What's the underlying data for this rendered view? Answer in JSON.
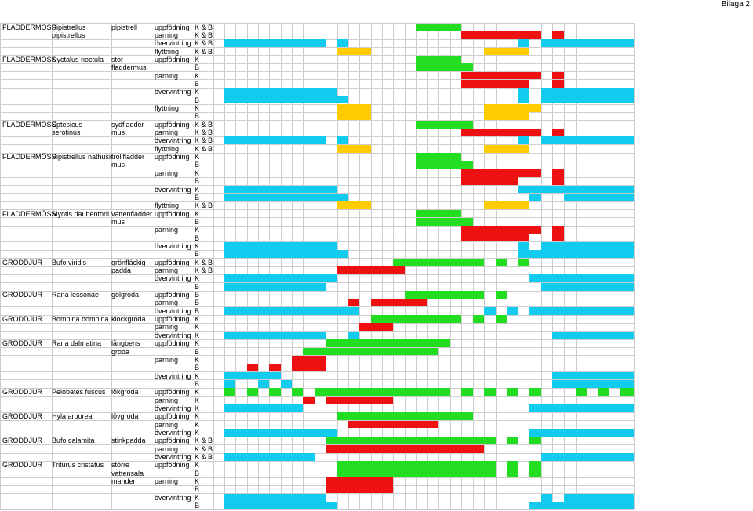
{
  "page_tag": "Bilaga 2",
  "colors": {
    "uppfodning": "#22dd22",
    "parning": "#ee1111",
    "overvintring": "#11ccee",
    "flyttning": "#ffcc00",
    "gridline": "#cccccc"
  },
  "rows": [
    {
      "group": "FLADDERMÖSS",
      "latin": "Pipistrellus",
      "swedish": "pipistrell",
      "activity": "uppfödning",
      "code": "K & B",
      "color": "uppfodning",
      "segs": [
        [
          530,
          588
        ]
      ]
    },
    {
      "group": "",
      "latin": "pipistrellus",
      "swedish": "",
      "activity": "parning",
      "code": "K & B",
      "color": "parning",
      "segs": [
        [
          588,
          690
        ],
        [
          704,
          719
        ]
      ]
    },
    {
      "group": "",
      "latin": "",
      "swedish": "",
      "activity": "övervintring",
      "code": "K & B",
      "color": "overvintring",
      "segs": [
        [
          286,
          415
        ],
        [
          430,
          444
        ],
        [
          660,
          674
        ],
        [
          690,
          808
        ]
      ]
    },
    {
      "group": "",
      "latin": "",
      "swedish": "",
      "activity": "flyttning",
      "code": "K & B",
      "color": "flyttning",
      "segs": [
        [
          430,
          473
        ],
        [
          617,
          674
        ]
      ]
    },
    {
      "group": "FLADDERMÖSS",
      "latin": "Nyctalus noctula",
      "swedish": "stor",
      "activity": "uppfödning",
      "code": "K",
      "color": "uppfodning",
      "segs": [
        [
          530,
          588
        ]
      ]
    },
    {
      "group": "",
      "latin": "",
      "swedish": "fladdermus",
      "activity": "",
      "code": "B",
      "color": "uppfodning",
      "segs": [
        [
          530,
          603
        ]
      ]
    },
    {
      "group": "",
      "latin": "",
      "swedish": "",
      "activity": "parning",
      "code": "K",
      "color": "parning",
      "segs": [
        [
          588,
          690
        ],
        [
          704,
          719
        ]
      ]
    },
    {
      "group": "",
      "latin": "",
      "swedish": "",
      "activity": "",
      "code": "B",
      "color": "parning",
      "segs": [
        [
          588,
          674
        ],
        [
          704,
          719
        ]
      ]
    },
    {
      "group": "",
      "latin": "",
      "swedish": "",
      "activity": "övervintring",
      "code": "K",
      "color": "overvintring",
      "segs": [
        [
          286,
          430
        ],
        [
          660,
          674
        ],
        [
          690,
          808
        ]
      ]
    },
    {
      "group": "",
      "latin": "",
      "swedish": "",
      "activity": "",
      "code": "B",
      "color": "overvintring",
      "segs": [
        [
          286,
          444
        ],
        [
          660,
          674
        ],
        [
          690,
          808
        ]
      ]
    },
    {
      "group": "",
      "latin": "",
      "swedish": "",
      "activity": "flyttning",
      "code": "K",
      "color": "flyttning",
      "segs": [
        [
          430,
          473
        ],
        [
          617,
          690
        ]
      ]
    },
    {
      "group": "",
      "latin": "",
      "swedish": "",
      "activity": "",
      "code": "B",
      "color": "flyttning",
      "segs": [
        [
          430,
          473
        ],
        [
          617,
          674
        ]
      ]
    },
    {
      "group": "FLADDERMÖSS",
      "latin": "Eptesicus",
      "swedish": "sydfladder",
      "activity": "uppfödning",
      "code": "K & B",
      "color": "uppfodning",
      "segs": [
        [
          530,
          603
        ]
      ]
    },
    {
      "group": "",
      "latin": "serotinus",
      "swedish": "mus",
      "activity": "parning",
      "code": "K & B",
      "color": "parning",
      "segs": [
        [
          588,
          690
        ],
        [
          704,
          719
        ]
      ]
    },
    {
      "group": "",
      "latin": "",
      "swedish": "",
      "activity": "övervintring",
      "code": "K & B",
      "color": "overvintring",
      "segs": [
        [
          286,
          415
        ],
        [
          430,
          444
        ],
        [
          660,
          674
        ],
        [
          690,
          808
        ]
      ]
    },
    {
      "group": "",
      "latin": "",
      "swedish": "",
      "activity": "flyttning",
      "code": "K & B",
      "color": "flyttning",
      "segs": [
        [
          430,
          473
        ],
        [
          617,
          674
        ]
      ]
    },
    {
      "group": "FLADDERMÖSS",
      "latin": "Pipistrellus nathusii",
      "swedish": "trollfladder",
      "activity": "uppfödning",
      "code": "K",
      "color": "uppfodning",
      "segs": [
        [
          530,
          588
        ]
      ]
    },
    {
      "group": "",
      "latin": "",
      "swedish": "mus",
      "activity": "",
      "code": "B",
      "color": "uppfodning",
      "segs": [
        [
          530,
          603
        ]
      ]
    },
    {
      "group": "",
      "latin": "",
      "swedish": "",
      "activity": "parning",
      "code": "K",
      "color": "parning",
      "segs": [
        [
          588,
          690
        ],
        [
          704,
          719
        ]
      ]
    },
    {
      "group": "",
      "latin": "",
      "swedish": "",
      "activity": "",
      "code": "B",
      "color": "parning",
      "segs": [
        [
          588,
          660
        ],
        [
          704,
          719
        ]
      ]
    },
    {
      "group": "",
      "latin": "",
      "swedish": "",
      "activity": "övervintring",
      "code": "K",
      "color": "overvintring",
      "segs": [
        [
          286,
          430
        ],
        [
          660,
          808
        ]
      ]
    },
    {
      "group": "",
      "latin": "",
      "swedish": "",
      "activity": "",
      "code": "B",
      "color": "overvintring",
      "segs": [
        [
          286,
          444
        ],
        [
          674,
          690
        ],
        [
          719,
          808
        ]
      ]
    },
    {
      "group": "",
      "latin": "",
      "swedish": "",
      "activity": "flyttning",
      "code": "K & B",
      "color": "flyttning",
      "segs": [
        [
          430,
          473
        ],
        [
          617,
          674
        ]
      ]
    },
    {
      "group": "FLADDERMÖSS",
      "latin": "Myotis daubentoni",
      "swedish": "vattenfladder",
      "activity": "uppfödning",
      "code": "K",
      "color": "uppfodning",
      "segs": [
        [
          530,
          588
        ]
      ]
    },
    {
      "group": "",
      "latin": "",
      "swedish": "mus",
      "activity": "",
      "code": "B",
      "color": "uppfodning",
      "segs": [
        [
          530,
          603
        ]
      ]
    },
    {
      "group": "",
      "latin": "",
      "swedish": "",
      "activity": "parning",
      "code": "K",
      "color": "parning",
      "segs": [
        [
          588,
          690
        ],
        [
          704,
          719
        ]
      ]
    },
    {
      "group": "",
      "latin": "",
      "swedish": "",
      "activity": "",
      "code": "B",
      "color": "parning",
      "segs": [
        [
          588,
          674
        ],
        [
          704,
          719
        ]
      ]
    },
    {
      "group": "",
      "latin": "",
      "swedish": "",
      "activity": "övervintring",
      "code": "K",
      "color": "overvintring",
      "segs": [
        [
          286,
          430
        ],
        [
          660,
          674
        ],
        [
          690,
          808
        ]
      ]
    },
    {
      "group": "",
      "latin": "",
      "swedish": "",
      "activity": "",
      "code": "B",
      "color": "overvintring",
      "segs": [
        [
          286,
          444
        ],
        [
          660,
          808
        ]
      ]
    },
    {
      "group": "GRODDJUR",
      "latin": "Bufo viridis",
      "swedish": "grönfläckig",
      "activity": "uppfödning",
      "code": "K & B",
      "color": "uppfodning",
      "segs": [
        [
          501,
          617
        ],
        [
          632,
          646
        ],
        [
          660,
          674
        ]
      ]
    },
    {
      "group": "",
      "latin": "",
      "swedish": "padda",
      "activity": "parning",
      "code": "K & B",
      "color": "parning",
      "segs": [
        [
          430,
          516
        ]
      ]
    },
    {
      "group": "",
      "latin": "",
      "swedish": "",
      "activity": "övervintring",
      "code": "K",
      "color": "overvintring",
      "segs": [
        [
          286,
          430
        ],
        [
          674,
          808
        ]
      ]
    },
    {
      "group": "",
      "latin": "",
      "swedish": "",
      "activity": "",
      "code": "B",
      "color": "overvintring",
      "segs": [
        [
          286,
          415
        ],
        [
          690,
          808
        ]
      ]
    },
    {
      "group": "GRODDJUR",
      "latin": "Rana lessonae",
      "swedish": "gölgroda",
      "activity": "uppfödning",
      "code": "B",
      "color": "uppfodning",
      "segs": [
        [
          516,
          617
        ],
        [
          632,
          646
        ]
      ]
    },
    {
      "group": "",
      "latin": "",
      "swedish": "",
      "activity": "parning",
      "code": "B",
      "color": "parning",
      "segs": [
        [
          444,
          458
        ],
        [
          473,
          545
        ]
      ]
    },
    {
      "group": "",
      "latin": "",
      "swedish": "",
      "activity": "övervintring",
      "code": "B",
      "color": "overvintring",
      "segs": [
        [
          286,
          458
        ],
        [
          617,
          632
        ],
        [
          646,
          660
        ],
        [
          674,
          808
        ]
      ]
    },
    {
      "group": "GRODDJUR",
      "latin": "Bombina bombina",
      "swedish": "klockgroda",
      "activity": "uppfödning",
      "code": "K",
      "color": "uppfodning",
      "segs": [
        [
          473,
          588
        ],
        [
          603,
          617
        ],
        [
          632,
          646
        ]
      ]
    },
    {
      "group": "",
      "latin": "",
      "swedish": "",
      "activity": "parning",
      "code": "K",
      "color": "parning",
      "segs": [
        [
          458,
          501
        ]
      ]
    },
    {
      "group": "",
      "latin": "",
      "swedish": "",
      "activity": "övervintring",
      "code": "K",
      "color": "overvintring",
      "segs": [
        [
          286,
          415
        ],
        [
          444,
          458
        ],
        [
          704,
          808
        ]
      ]
    },
    {
      "group": "GRODDJUR",
      "latin": "Rana dalmatina",
      "swedish": "långbens",
      "activity": "uppfödning",
      "code": "K",
      "color": "uppfodning",
      "segs": [
        [
          415,
          574
        ]
      ]
    },
    {
      "group": "",
      "latin": "",
      "swedish": "groda",
      "activity": "",
      "code": "B",
      "color": "uppfodning",
      "segs": [
        [
          386,
          559
        ]
      ]
    },
    {
      "group": "",
      "latin": "",
      "swedish": "",
      "activity": "parning",
      "code": "K",
      "color": "parning",
      "segs": [
        [
          372,
          415
        ]
      ]
    },
    {
      "group": "",
      "latin": "",
      "swedish": "",
      "activity": "",
      "code": "B",
      "color": "parning",
      "segs": [
        [
          315,
          329
        ],
        [
          343,
          358
        ],
        [
          372,
          415
        ]
      ]
    },
    {
      "group": "",
      "latin": "",
      "swedish": "",
      "activity": "övervintring",
      "code": "K",
      "color": "overvintring",
      "segs": [
        [
          286,
          358
        ],
        [
          704,
          808
        ]
      ]
    },
    {
      "group": "",
      "latin": "",
      "swedish": "",
      "activity": "",
      "code": "B",
      "color": "overvintring",
      "segs": [
        [
          286,
          300
        ],
        [
          329,
          343
        ],
        [
          358,
          372
        ],
        [
          704,
          808
        ]
      ]
    },
    {
      "group": "GRODDJUR",
      "latin": "Pelobates fuscus",
      "swedish": "lökgroda",
      "activity": "uppfödning",
      "code": "K",
      "color": "uppfodning",
      "segs": [
        [
          286,
          300
        ],
        [
          315,
          329
        ],
        [
          343,
          358
        ],
        [
          372,
          386
        ],
        [
          401,
          574
        ],
        [
          588,
          603
        ],
        [
          617,
          632
        ],
        [
          646,
          660
        ],
        [
          674,
          690
        ],
        [
          734,
          748
        ],
        [
          762,
          776
        ],
        [
          790,
          808
        ]
      ]
    },
    {
      "group": "",
      "latin": "",
      "swedish": "",
      "activity": "parning",
      "code": "K",
      "color": "parning",
      "segs": [
        [
          386,
          401
        ],
        [
          415,
          501
        ]
      ]
    },
    {
      "group": "",
      "latin": "",
      "swedish": "",
      "activity": "övervintring",
      "code": "K",
      "color": "overvintring",
      "segs": [
        [
          286,
          386
        ],
        [
          674,
          808
        ]
      ]
    },
    {
      "group": "GRODDJUR",
      "latin": "Hyla arborea",
      "swedish": "lövgroda",
      "activity": "uppfödning",
      "code": "K",
      "color": "uppfodning",
      "segs": [
        [
          430,
          603
        ]
      ]
    },
    {
      "group": "",
      "latin": "",
      "swedish": "",
      "activity": "parning",
      "code": "K",
      "color": "parning",
      "segs": [
        [
          444,
          559
        ]
      ]
    },
    {
      "group": "",
      "latin": "",
      "swedish": "",
      "activity": "övervintring",
      "code": "K",
      "color": "overvintring",
      "segs": [
        [
          286,
          430
        ],
        [
          674,
          808
        ]
      ]
    },
    {
      "group": "GRODDJUR",
      "latin": "Bufo calamita",
      "swedish": "stinkpadda",
      "activity": "uppfödning",
      "code": "K & B",
      "color": "uppfodning",
      "segs": [
        [
          415,
          632
        ],
        [
          646,
          660
        ],
        [
          674,
          690
        ]
      ]
    },
    {
      "group": "",
      "latin": "",
      "swedish": "",
      "activity": "parning",
      "code": "K & B",
      "color": "parning",
      "segs": [
        [
          415,
          617
        ]
      ]
    },
    {
      "group": "",
      "latin": "",
      "swedish": "",
      "activity": "övervintring",
      "code": "K & B",
      "color": "overvintring",
      "segs": [
        [
          286,
          401
        ],
        [
          690,
          808
        ]
      ]
    },
    {
      "group": "GRODDJUR",
      "latin": "Triturus cristatus",
      "swedish": "större",
      "activity": "uppfödning",
      "code": "K",
      "color": "uppfodning",
      "segs": [
        [
          430,
          632
        ],
        [
          646,
          660
        ],
        [
          674,
          690
        ]
      ]
    },
    {
      "group": "",
      "latin": "",
      "swedish": "vattensala",
      "activity": "",
      "code": "B",
      "color": "uppfodning",
      "segs": [
        [
          430,
          632
        ],
        [
          646,
          660
        ],
        [
          674,
          690
        ]
      ]
    },
    {
      "group": "",
      "latin": "",
      "swedish": "mander",
      "activity": "parning",
      "code": "K",
      "color": "parning",
      "segs": [
        [
          415,
          501
        ]
      ]
    },
    {
      "group": "",
      "latin": "",
      "swedish": "",
      "activity": "",
      "code": "B",
      "color": "parning",
      "segs": [
        [
          415,
          501
        ]
      ]
    },
    {
      "group": "",
      "latin": "",
      "swedish": "",
      "activity": "övervintring",
      "code": "K",
      "color": "overvintring",
      "segs": [
        [
          286,
          415
        ],
        [
          690,
          704
        ],
        [
          719,
          808
        ]
      ]
    },
    {
      "group": "",
      "latin": "",
      "swedish": "",
      "activity": "",
      "code": "B",
      "color": "overvintring",
      "segs": [
        [
          286,
          430
        ],
        [
          674,
          808
        ]
      ]
    }
  ]
}
